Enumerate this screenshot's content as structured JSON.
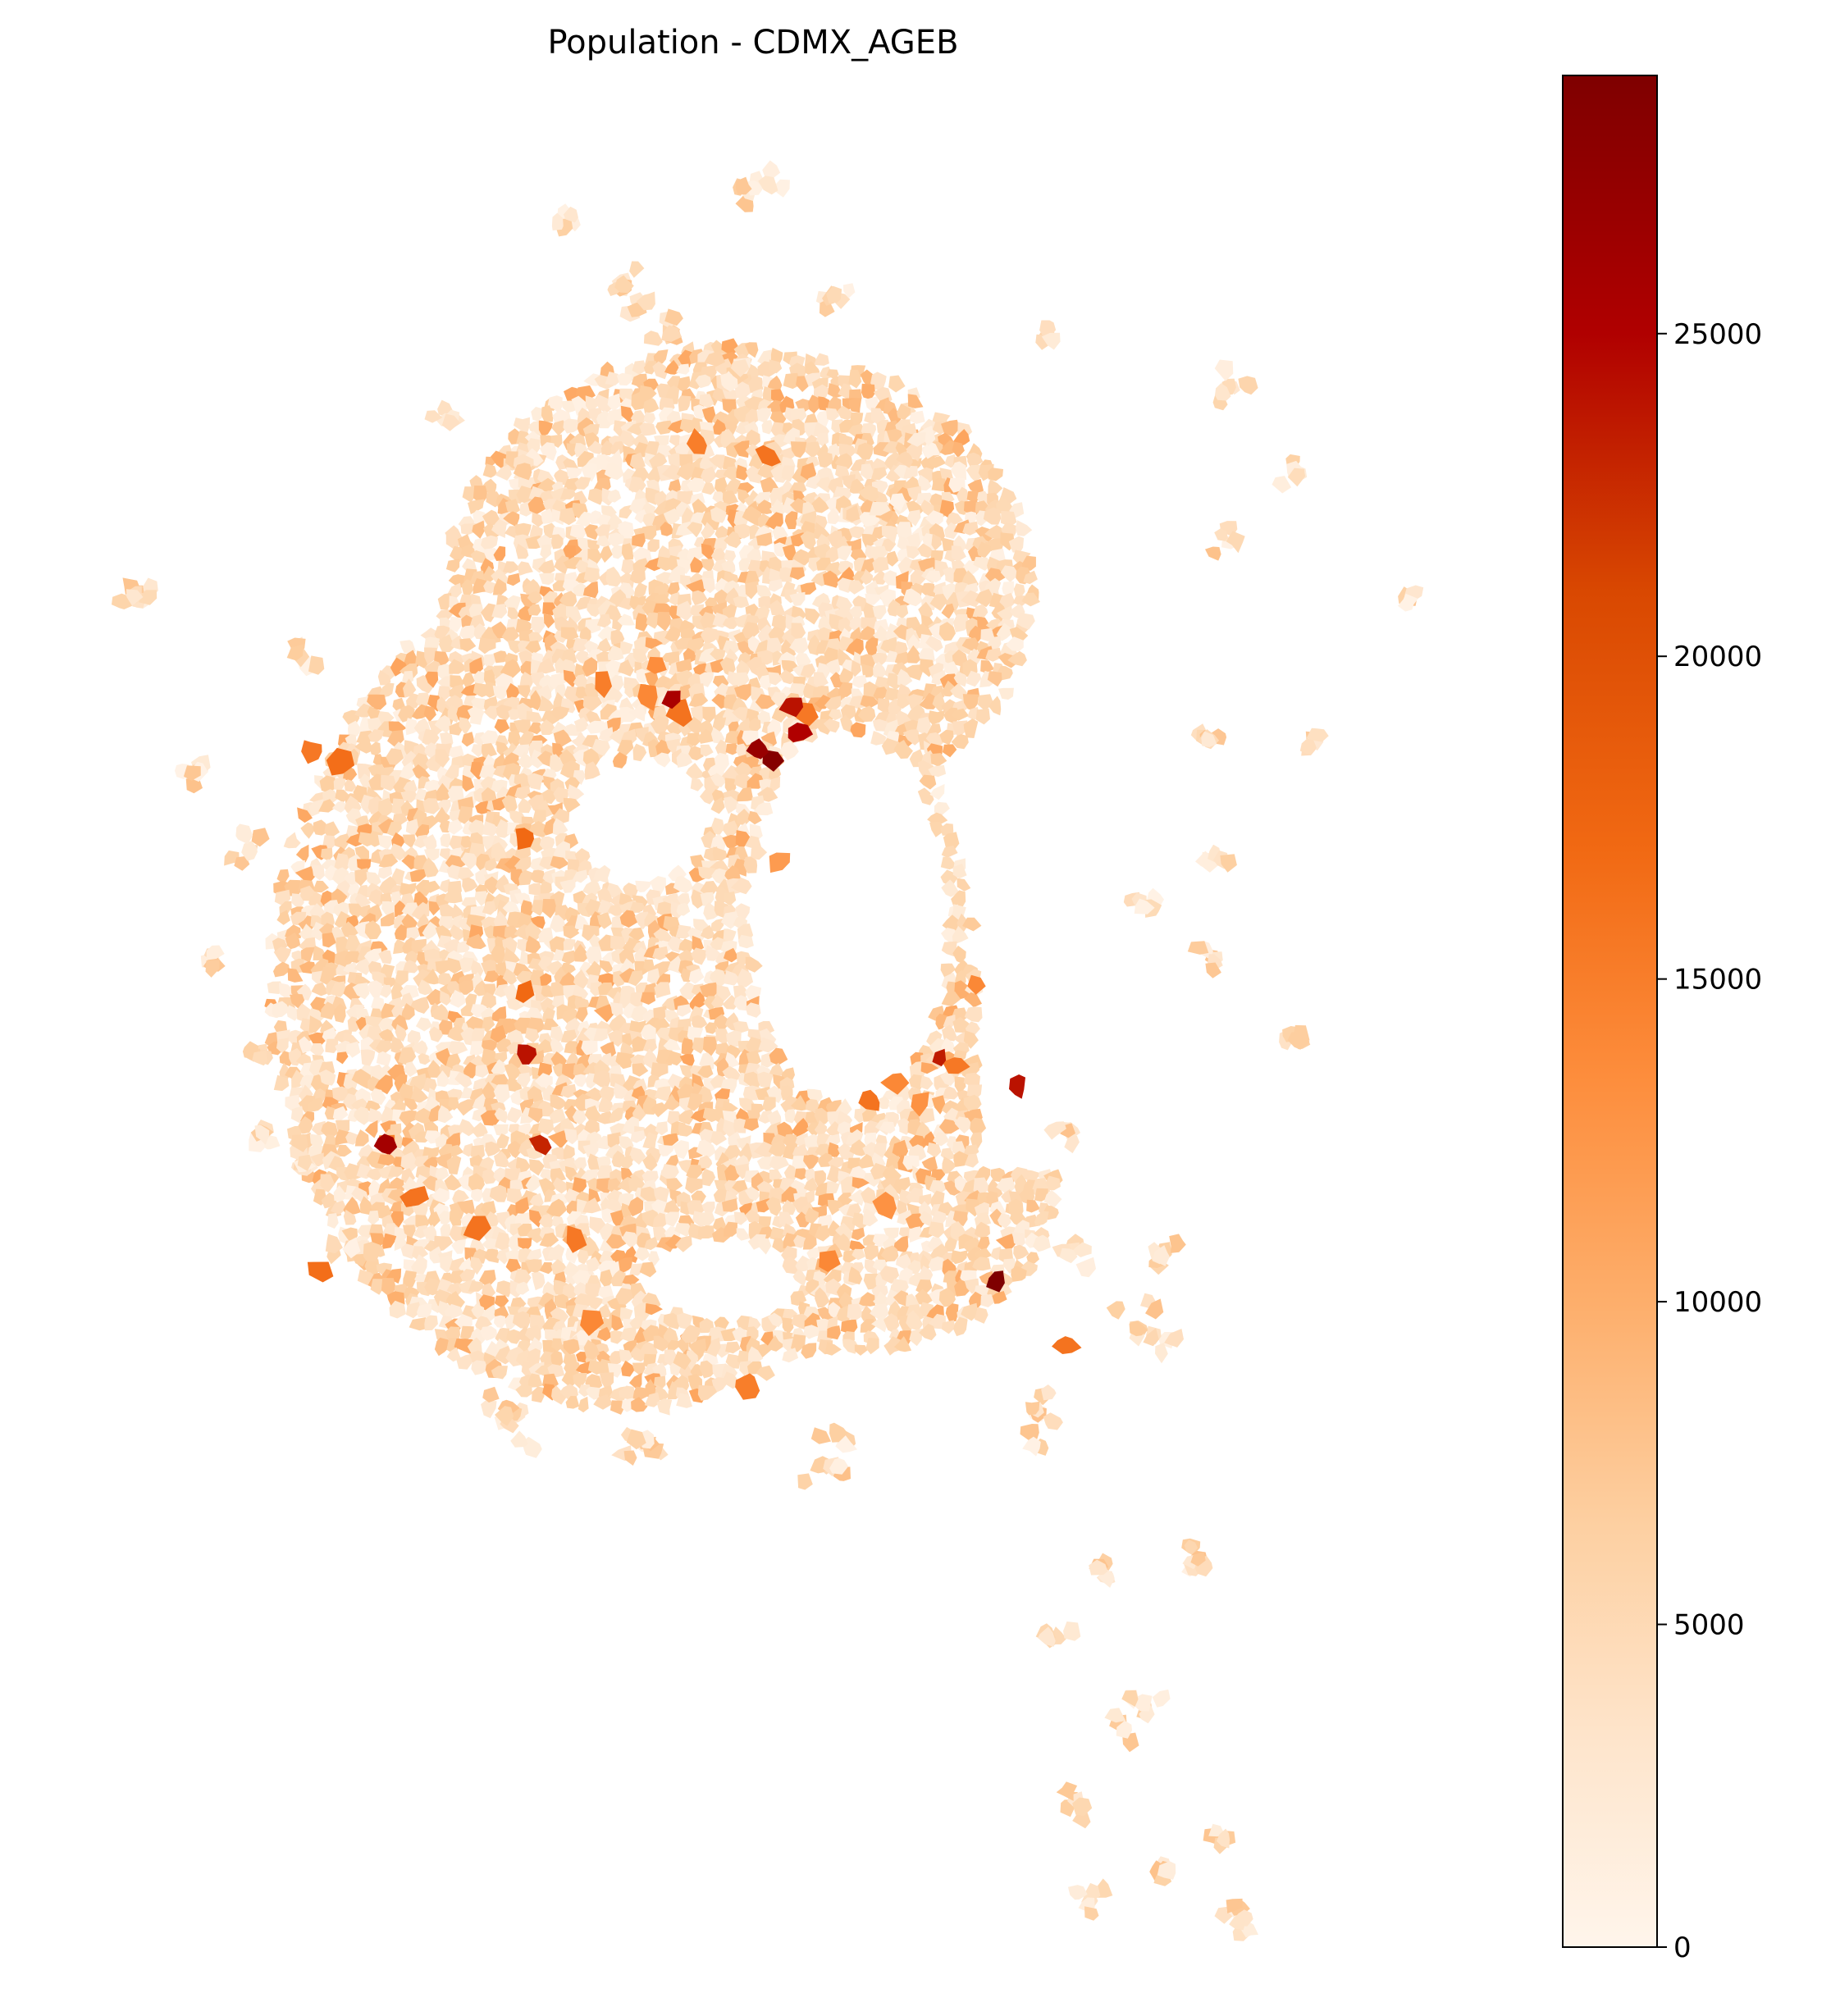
{
  "title": "Population - CDMX_AGEB",
  "colors": {
    "scale": [
      "#fff5eb",
      "#fee6ce",
      "#fdd0a2",
      "#fdae6b",
      "#fd8d3c",
      "#f16913",
      "#d94801",
      "#b00000",
      "#7f0000"
    ],
    "scale_stops": [
      0,
      3000,
      6500,
      10000,
      13500,
      17000,
      21000,
      25000,
      29000
    ],
    "background": "#ffffff",
    "frame": "#000000"
  },
  "colorbar": {
    "min": 0,
    "max": 29000,
    "ticks": [
      {
        "value": 0,
        "label": "0"
      },
      {
        "value": 5000,
        "label": "5000"
      },
      {
        "value": 10000,
        "label": "10000"
      },
      {
        "value": 15000,
        "label": "15000"
      },
      {
        "value": 20000,
        "label": "20000"
      },
      {
        "value": 25000,
        "label": "25000"
      }
    ]
  }
}
